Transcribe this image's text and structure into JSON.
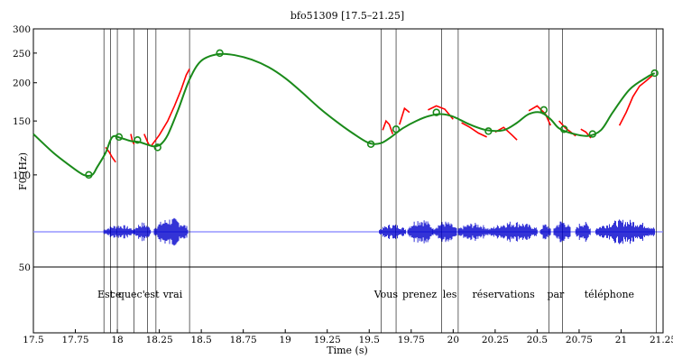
{
  "chart_data": {
    "type": "line",
    "title": "bfo51309 [17.5–21.25]",
    "xlabel": "Time (s)",
    "ylabel": "F0 (Hz)",
    "xlim": [
      17.5,
      21.25
    ],
    "ylim": [
      60,
      300
    ],
    "yscale": "log",
    "x_ticks": [
      "17.5",
      "17.75",
      "18",
      "18.25",
      "18.5",
      "18.75",
      "19",
      "19.25",
      "19.5",
      "19.75",
      "20",
      "20.25",
      "20.5",
      "20.75",
      "21",
      "21.25"
    ],
    "y_ticks": [
      "50",
      "100",
      "150",
      "200",
      "250",
      "300"
    ],
    "grid": false,
    "colors": {
      "stylized_f0": "#1a8a1a",
      "raw_f0": "#ff0000",
      "waveform": "#0000cc",
      "baseline": "#8080ff",
      "boundaries": "#000000"
    },
    "series": [
      {
        "kind": "smooth-curve",
        "x": [
          17.5,
          17.62,
          17.72,
          17.8,
          17.85,
          17.88,
          17.93,
          17.97,
          18.02,
          18.08,
          18.13,
          18.19,
          18.22,
          18.26,
          18.3,
          18.36,
          18.43,
          18.5,
          18.6,
          18.7,
          18.8,
          18.9,
          19.0,
          19.1,
          19.2,
          19.3,
          19.4,
          19.5,
          19.57,
          19.63,
          19.7,
          19.78,
          19.86,
          19.93,
          20.0,
          20.1,
          20.2,
          20.3,
          20.38,
          20.45,
          20.52,
          20.58,
          20.63,
          20.7,
          20.8,
          20.88,
          20.95,
          21.05,
          21.15,
          21.2
        ],
        "y": [
          136,
          118,
          107,
          100,
          100,
          106,
          118,
          133,
          132,
          129,
          128,
          125,
          124,
          126,
          135,
          162,
          205,
          236,
          248,
          246,
          238,
          225,
          207,
          186,
          166,
          150,
          137,
          127,
          127,
          133,
          142,
          150,
          156,
          158,
          155,
          146,
          140,
          140,
          148,
          158,
          160,
          152,
          142,
          137,
          134,
          140,
          160,
          190,
          208,
          215
        ]
      },
      {
        "kind": "anchor-points",
        "x": [
          17.83,
          18.01,
          18.12,
          18.24,
          18.61,
          19.51,
          19.66,
          19.9,
          20.21,
          20.54,
          20.66,
          20.83,
          21.2
        ],
        "y": [
          100,
          133,
          130,
          123,
          250,
          126,
          141,
          160,
          139,
          163,
          141,
          136,
          215
        ]
      },
      {
        "kind": "raw-f0-segments",
        "segments": [
          {
            "x": [
              17.93,
              17.95,
              17.97,
              17.99
            ],
            "y": [
              123,
              119,
              114,
              110
            ]
          },
          {
            "x": [
              18.08,
              18.09,
              18.1
            ],
            "y": [
              136,
              129,
              126
            ]
          },
          {
            "x": [
              18.16,
              18.17,
              18.18,
              18.19
            ],
            "y": [
              136,
              132,
              128,
              125
            ]
          },
          {
            "x": [
              18.2,
              18.25,
              18.3,
              18.34,
              18.38,
              18.41,
              18.43
            ],
            "y": [
              124,
              135,
              150,
              168,
              190,
              212,
              222
            ]
          },
          {
            "x": [
              19.58,
              19.6,
              19.62,
              19.64
            ],
            "y": [
              140,
              150,
              146,
              136
            ]
          },
          {
            "x": [
              19.68,
              19.71,
              19.74
            ],
            "y": [
              146,
              165,
              160
            ]
          },
          {
            "x": [
              19.85,
              19.9,
              19.95,
              20.0
            ],
            "y": [
              163,
              168,
              164,
              152
            ]
          },
          {
            "x": [
              20.05,
              20.1,
              20.15,
              20.2
            ],
            "y": [
              148,
              143,
              137,
              133
            ]
          },
          {
            "x": [
              20.25,
              20.3,
              20.35,
              20.38
            ],
            "y": [
              138,
              143,
              135,
              130
            ]
          },
          {
            "x": [
              20.45,
              20.5,
              20.55,
              20.58
            ],
            "y": [
              162,
              168,
              158,
              145
            ]
          },
          {
            "x": [
              20.63,
              20.67,
              20.7,
              20.73
            ],
            "y": [
              150,
              142,
              138,
              134
            ]
          },
          {
            "x": [
              20.76,
              20.79,
              20.82
            ],
            "y": [
              141,
              138,
              132
            ]
          },
          {
            "x": [
              20.99,
              21.03,
              21.07,
              21.11,
              21.15,
              21.19
            ],
            "y": [
              145,
              160,
              180,
              195,
              203,
              212
            ]
          }
        ]
      },
      {
        "kind": "waveform-bursts",
        "bursts": [
          [
            17.92,
            18.1,
            0.4
          ],
          [
            18.1,
            18.2,
            0.6
          ],
          [
            18.22,
            18.42,
            1.0
          ],
          [
            19.56,
            19.72,
            0.45
          ],
          [
            19.73,
            19.88,
            1.0
          ],
          [
            19.88,
            20.02,
            0.7
          ],
          [
            20.03,
            20.22,
            0.55
          ],
          [
            20.22,
            20.5,
            0.7
          ],
          [
            20.52,
            20.58,
            0.5
          ],
          [
            20.6,
            20.7,
            0.8
          ],
          [
            20.73,
            20.82,
            0.7
          ],
          [
            20.85,
            21.2,
            0.85
          ]
        ]
      }
    ],
    "boundaries": [
      17.92,
      17.96,
      18.0,
      18.1,
      18.18,
      18.23,
      18.43,
      19.57,
      19.66,
      19.93,
      20.03,
      20.57,
      20.65,
      21.21
    ],
    "words": [
      "Est",
      "ce",
      "que",
      "c'",
      "est",
      "vrai",
      "Vous",
      "prenez",
      "les",
      "réservations",
      "par",
      "téléphone"
    ],
    "word_centers": [
      17.93,
      17.99,
      18.06,
      18.14,
      18.205,
      18.33,
      19.6,
      19.8,
      19.98,
      20.3,
      20.61,
      20.93
    ]
  }
}
